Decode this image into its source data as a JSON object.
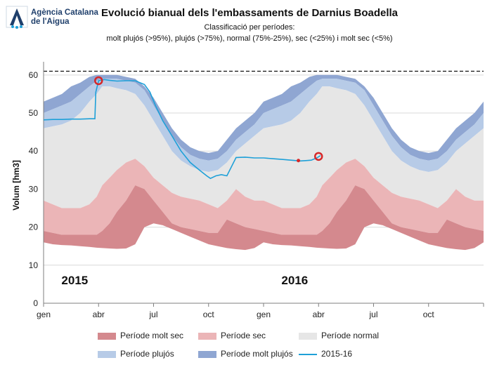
{
  "header": {
    "logo_line1": "Agència Catalana",
    "logo_line2": "de l'Aigua",
    "title": "Evolució bianual dels l'embassaments de Darnius Boadella",
    "subtitle_line1": "Classificació per períodes:",
    "subtitle_line2": "molt plujós (>95%), plujós (>75%), normal (75%-25%), sec (<25%) i molt sec (<5%)"
  },
  "colors": {
    "molt_sec": "#d4898e",
    "sec": "#ebb5b7",
    "normal": "#e6e6e6",
    "plujos": "#b7cbe7",
    "molt_plujos": "#8fa6d2",
    "line_2015_16": "#1ea0d8",
    "marker": "#d62728"
  },
  "chart_data": {
    "type": "area",
    "title": "Evolució bianual dels l'embassaments de Darnius Boadella",
    "xlabel": "",
    "ylabel": "Volum [hm3]",
    "xlim": [
      0,
      24
    ],
    "ylim": [
      0,
      62
    ],
    "yticks": [
      0,
      10,
      20,
      30,
      40,
      50,
      60
    ],
    "xticks": [
      {
        "x": 0,
        "label": "gen"
      },
      {
        "x": 3,
        "label": "abr"
      },
      {
        "x": 6,
        "label": "jul"
      },
      {
        "x": 9,
        "label": "oct"
      },
      {
        "x": 12,
        "label": "gen"
      },
      {
        "x": 15,
        "label": "abr"
      },
      {
        "x": 18,
        "label": "jul"
      },
      {
        "x": 21,
        "label": "oct"
      }
    ],
    "x_unit": "months since January 2015",
    "capacity_line": 61,
    "year_labels": [
      {
        "x": 1.7,
        "y": 5,
        "label": "2015"
      },
      {
        "x": 13.7,
        "y": 5,
        "label": "2016"
      }
    ],
    "envelope": {
      "x": [
        0,
        0.5,
        1,
        1.5,
        2,
        2.5,
        2.9,
        3.2,
        3.6,
        4,
        4.5,
        5,
        5.5,
        6,
        6.5,
        7,
        7.5,
        8,
        8.5,
        9,
        9.5,
        10,
        10.5,
        11,
        11.5,
        12
      ],
      "max_molt_plujos": [
        53,
        54,
        55,
        57,
        58,
        59.5,
        60,
        60,
        60,
        60,
        59.5,
        59,
        57,
        54,
        50,
        46,
        43,
        41,
        40,
        39.5,
        40,
        43,
        46,
        48,
        50,
        53
      ],
      "p95_plujos": [
        50,
        51,
        52,
        53,
        55,
        57,
        58.5,
        59,
        59,
        59,
        58.5,
        58,
        56,
        52,
        48,
        44,
        41,
        39,
        38,
        37.5,
        38,
        40,
        43,
        45,
        47,
        50
      ],
      "p75_normal_top": [
        46,
        46.5,
        47,
        48,
        50,
        53,
        55,
        57,
        57,
        56.5,
        56,
        55,
        52,
        48,
        44,
        40,
        37.5,
        36,
        35,
        34.5,
        35,
        37,
        40,
        42,
        44,
        46
      ],
      "p25_sec_top": [
        27,
        26,
        25,
        25,
        25,
        26,
        28,
        31,
        33,
        35,
        37,
        38,
        36,
        33,
        31,
        29,
        28,
        27.5,
        27,
        26,
        25,
        27,
        30,
        28,
        27,
        27
      ],
      "p05_molt_sec_top": [
        19,
        18.5,
        18,
        18,
        18,
        18,
        18,
        19,
        21,
        24,
        27,
        31,
        30,
        27,
        24,
        21,
        20,
        19.5,
        19,
        18.5,
        18.5,
        22,
        21,
        20,
        19.5,
        19
      ],
      "min": [
        16,
        15.5,
        15.3,
        15.2,
        15,
        14.8,
        14.6,
        14.5,
        14.4,
        14.3,
        14.4,
        15.5,
        20,
        21,
        20.5,
        19.5,
        18.5,
        17.5,
        16.5,
        15.5,
        15,
        14.5,
        14.2,
        14,
        14.5,
        16
      ]
    },
    "series": [
      {
        "name": "2015-16",
        "x": [
          0,
          0.5,
          1,
          1.5,
          2,
          2.5,
          2.8,
          2.85,
          3,
          3.3,
          3.6,
          4,
          4.5,
          5,
          5.5,
          5.8,
          6.1,
          6.5,
          7,
          7.5,
          8,
          8.5,
          8.9,
          9.1,
          9.4,
          9.7,
          10,
          10.5,
          11,
          11.5,
          12,
          12.5,
          13,
          13.5,
          14,
          14.3,
          14.6,
          14.9,
          15.1
        ],
        "values": [
          48.2,
          48.3,
          48.3,
          48.4,
          48.4,
          48.5,
          48.5,
          55.5,
          58.5,
          58.8,
          58.6,
          58.4,
          58.5,
          58.5,
          57.5,
          55.5,
          52,
          48,
          44,
          40,
          37,
          35,
          33.5,
          32.8,
          33.5,
          33.8,
          33.5,
          38.3,
          38.4,
          38.2,
          38.2,
          38.0,
          37.8,
          37.6,
          37.4,
          37.5,
          37.6,
          38.2,
          38.8
        ]
      }
    ],
    "markers": [
      {
        "x": 3.0,
        "y": 58.5,
        "type": "circle"
      },
      {
        "x": 13.9,
        "y": 37.5,
        "type": "dot"
      },
      {
        "x": 15.0,
        "y": 38.6,
        "type": "circle"
      }
    ]
  },
  "legend": {
    "molt_sec": "Període molt sec",
    "sec": "Període sec",
    "normal": "Període normal",
    "plujos": "Període plujós",
    "molt_plujos": "Període molt plujós",
    "line": "2015-16"
  }
}
